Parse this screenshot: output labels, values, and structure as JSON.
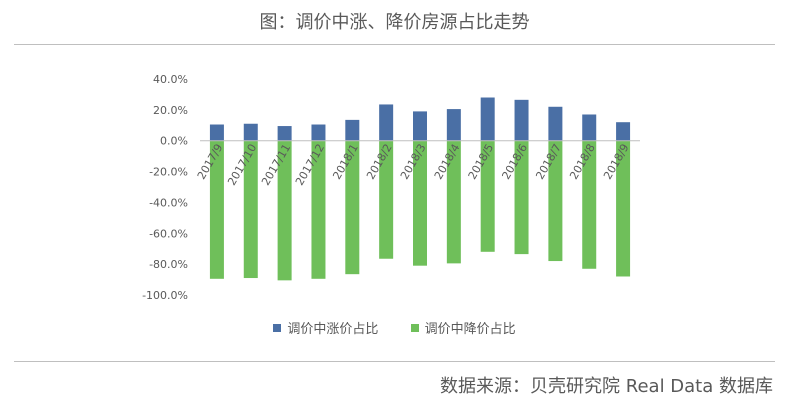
{
  "header": {
    "title": "图：调价中涨、降价房源占比走势"
  },
  "footer": {
    "source": "数据来源：贝壳研究院 Real Data 数据库"
  },
  "colors": {
    "rise": "#4a6fa5",
    "fall": "#6fbf5a",
    "axis": "#bfbfbf",
    "text": "#595959"
  },
  "chart_data": {
    "type": "bar",
    "categories": [
      "2017/9",
      "2017/10",
      "2017/11",
      "2017/12",
      "2018/1",
      "2018/2",
      "2018/3",
      "2018/4",
      "2018/5",
      "2018/6",
      "2018/7",
      "2018/8",
      "2018/9"
    ],
    "series": [
      {
        "name": "调价中涨价占比",
        "values": [
          10.5,
          11.0,
          9.5,
          10.5,
          13.5,
          23.5,
          19.0,
          20.5,
          28.0,
          26.5,
          22.0,
          17.0,
          12.0
        ]
      },
      {
        "name": "调价中降价占比",
        "values": [
          -89.5,
          -89.0,
          -90.5,
          -89.5,
          -86.5,
          -76.5,
          -81.0,
          -79.5,
          -72.0,
          -73.5,
          -78.0,
          -83.0,
          -88.0
        ]
      }
    ],
    "ylim": [
      -100,
      40
    ],
    "yticks": [
      "40.0%",
      "20.0%",
      "0.0%",
      "-20.0%",
      "-40.0%",
      "-60.0%",
      "-80.0%",
      "-100.0%"
    ],
    "ytick_values": [
      40,
      20,
      0,
      -20,
      -40,
      -60,
      -80,
      -100
    ],
    "legend_position": "bottom",
    "grid": false
  }
}
